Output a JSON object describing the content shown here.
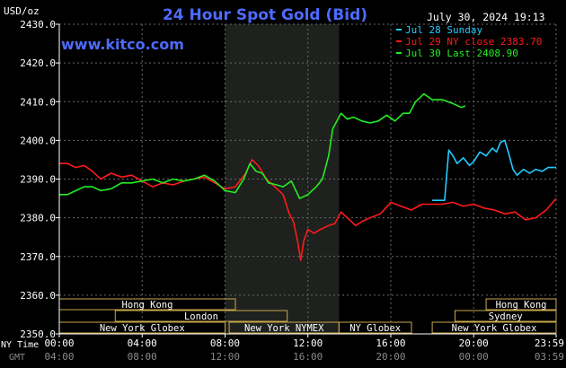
{
  "site": "www.kitco.com",
  "unit": "USD/oz",
  "timestamp": "July 30, 2024 19:13",
  "chart_data": {
    "type": "line",
    "title": "24 Hour Spot Gold (Bid)",
    "xlabel": "",
    "ylabel": "",
    "ylim": [
      2350,
      2430
    ],
    "yticks": [
      "2430.0",
      "2420.0",
      "2410.0",
      "2400.0",
      "2390.0",
      "2380.0",
      "2370.0",
      "2360.0",
      "2350.0"
    ],
    "xticks_ny": [
      "00:00",
      "04:00",
      "08:00",
      "12:00",
      "16:00",
      "20:00",
      "23:59"
    ],
    "xticks_gmt": [
      "04:00",
      "08:00",
      "12:00",
      "16:00",
      "20:00",
      "00:00",
      "03:59"
    ],
    "x_axis_label_ny": "NY Time",
    "x_axis_label_gmt": "GMT",
    "grid": true,
    "legend_position": "top-right",
    "series": [
      {
        "name": "Jul 28 Sunday",
        "color": "#22ccff",
        "x": [
          18.0,
          18.6,
          18.62,
          18.8,
          19.0,
          19.2,
          19.5,
          19.8,
          20.0,
          20.3,
          20.6,
          20.9,
          21.1,
          21.3,
          21.5,
          21.7,
          21.9,
          22.1,
          22.4,
          22.7,
          23.0,
          23.3,
          23.6,
          23.98
        ],
        "y": [
          2384.5,
          2384.5,
          2386.0,
          2397.5,
          2396.0,
          2394.0,
          2395.5,
          2393.5,
          2394.5,
          2397.0,
          2396.0,
          2398.0,
          2397.0,
          2399.5,
          2400.0,
          2396.5,
          2392.5,
          2391.0,
          2392.5,
          2391.5,
          2392.5,
          2392.0,
          2393.0,
          2393.0
        ]
      },
      {
        "name": "Jul 29 NY close 2383.70",
        "color": "#ff1a1a",
        "x": [
          0.0,
          0.4,
          0.8,
          1.2,
          1.6,
          2.0,
          2.5,
          3.0,
          3.5,
          4.0,
          4.5,
          5.0,
          5.5,
          6.0,
          6.5,
          7.0,
          7.5,
          8.0,
          8.5,
          9.0,
          9.3,
          9.6,
          10.0,
          10.4,
          10.8,
          11.1,
          11.3,
          11.5,
          11.65,
          11.8,
          12.0,
          12.3,
          12.6,
          13.0,
          13.3,
          13.6,
          14.0,
          14.3,
          14.6,
          15.0,
          15.5,
          16.0,
          16.5,
          17.0,
          17.5,
          18.0,
          18.5,
          19.0,
          19.5,
          20.0,
          20.5,
          21.0,
          21.5,
          22.0,
          22.5,
          23.0,
          23.5,
          23.98
        ],
        "y": [
          2394.0,
          2394.0,
          2393.0,
          2393.5,
          2392.0,
          2390.0,
          2391.5,
          2390.5,
          2391.0,
          2389.5,
          2388.0,
          2389.0,
          2388.5,
          2389.5,
          2390.0,
          2390.5,
          2389.0,
          2387.5,
          2388.0,
          2391.5,
          2395.0,
          2393.5,
          2390.0,
          2388.0,
          2386.0,
          2381.0,
          2379.0,
          2374.0,
          2369.0,
          2374.0,
          2377.0,
          2376.0,
          2377.0,
          2378.0,
          2378.5,
          2381.5,
          2379.5,
          2378.0,
          2379.0,
          2380.0,
          2381.0,
          2384.0,
          2383.0,
          2382.0,
          2383.5,
          2383.5,
          2383.5,
          2384.0,
          2383.0,
          2383.5,
          2382.5,
          2382.0,
          2381.0,
          2381.5,
          2379.5,
          2380.0,
          2382.0,
          2385.0
        ]
      },
      {
        "name": "Jul 30 Last 2408.90",
        "color": "#22ee22",
        "x": [
          0.0,
          0.4,
          0.8,
          1.2,
          1.6,
          2.0,
          2.5,
          3.0,
          3.5,
          4.0,
          4.5,
          5.0,
          5.5,
          6.0,
          6.5,
          7.0,
          7.5,
          8.0,
          8.5,
          8.9,
          9.2,
          9.5,
          9.8,
          10.1,
          10.5,
          10.8,
          11.2,
          11.6,
          12.0,
          12.4,
          12.7,
          13.0,
          13.2,
          13.4,
          13.6,
          13.9,
          14.2,
          14.6,
          15.0,
          15.4,
          15.8,
          16.2,
          16.6,
          16.9,
          17.2,
          17.6,
          18.0,
          18.5,
          19.0,
          19.4,
          19.6
        ],
        "y": [
          2386.0,
          2386.0,
          2387.0,
          2388.0,
          2388.0,
          2387.0,
          2387.5,
          2389.0,
          2389.0,
          2389.5,
          2390.0,
          2389.0,
          2390.0,
          2389.5,
          2390.0,
          2391.0,
          2389.5,
          2387.0,
          2386.5,
          2390.0,
          2394.0,
          2392.0,
          2391.5,
          2389.0,
          2388.5,
          2388.0,
          2389.5,
          2385.0,
          2386.0,
          2388.0,
          2390.0,
          2396.0,
          2403.0,
          2405.0,
          2407.0,
          2405.5,
          2406.0,
          2405.0,
          2404.5,
          2405.0,
          2406.5,
          2405.0,
          2407.0,
          2407.0,
          2410.0,
          2412.0,
          2410.5,
          2410.5,
          2409.5,
          2408.5,
          2408.9
        ]
      }
    ],
    "highlight_region": {
      "x_start": 8.0,
      "x_end": 13.5
    },
    "sessions": [
      {
        "name": "Hong Kong",
        "row": 0,
        "x_start": 0.0,
        "x_end": 8.5
      },
      {
        "name": "London",
        "row": 1,
        "x_start": 2.7,
        "x_end": 11.0
      },
      {
        "name": "New York Globex",
        "row": 2,
        "x_start": 0.0,
        "x_end": 8.0
      },
      {
        "name": "New York NYMEX",
        "row": 2,
        "x_start": 8.2,
        "x_end": 13.5
      },
      {
        "name": "NY Globex",
        "row": 2,
        "x_start": 13.5,
        "x_end": 17.0
      },
      {
        "name": "Hong Kong",
        "row": 0,
        "x_start": 20.6,
        "x_end": 23.98
      },
      {
        "name": "Sydney",
        "row": 1,
        "x_start": 19.1,
        "x_end": 23.98
      },
      {
        "name": "New York Globex",
        "row": 2,
        "x_start": 18.0,
        "x_end": 23.98
      }
    ]
  }
}
